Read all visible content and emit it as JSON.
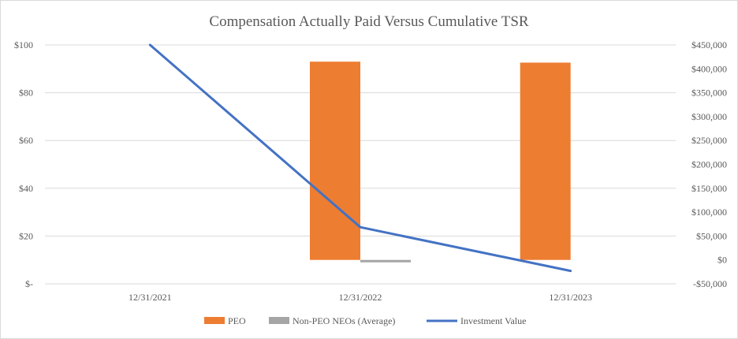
{
  "chart_data": {
    "type": "bar",
    "title": "Compensation Actually Paid Versus Cumulative TSR",
    "categories": [
      "12/31/2021",
      "12/31/2022",
      "12/31/2023"
    ],
    "y_left": {
      "range": [
        0,
        100
      ],
      "ticks": [
        0,
        20,
        40,
        60,
        80,
        100
      ],
      "tick_labels": [
        "$-",
        "$20",
        "$40",
        "$60",
        "$80",
        "$100"
      ]
    },
    "y_right": {
      "range": [
        -50000,
        450000
      ],
      "ticks": [
        -50000,
        0,
        50000,
        100000,
        150000,
        200000,
        250000,
        300000,
        350000,
        400000,
        450000
      ],
      "tick_labels": [
        "-$50,000",
        "$0",
        "$50,000",
        "$100,000",
        "$150,000",
        "$200,000",
        "$250,000",
        "$300,000",
        "$350,000",
        "$400,000",
        "$450,000"
      ]
    },
    "series": [
      {
        "name": "PEO",
        "kind": "bar",
        "axis": "right",
        "color": "#ED7D31",
        "values": [
          null,
          415000,
          413000
        ]
      },
      {
        "name": "Non-PEO NEOs (Average)",
        "kind": "bar",
        "axis": "right",
        "color": "#A5A5A5",
        "values": [
          null,
          -5000,
          null
        ]
      },
      {
        "name": "Investment Value",
        "kind": "line",
        "axis": "left",
        "color": "#4472C4",
        "values": [
          100,
          23.7,
          5.4
        ]
      }
    ],
    "legend_position": "bottom",
    "grid": true
  }
}
